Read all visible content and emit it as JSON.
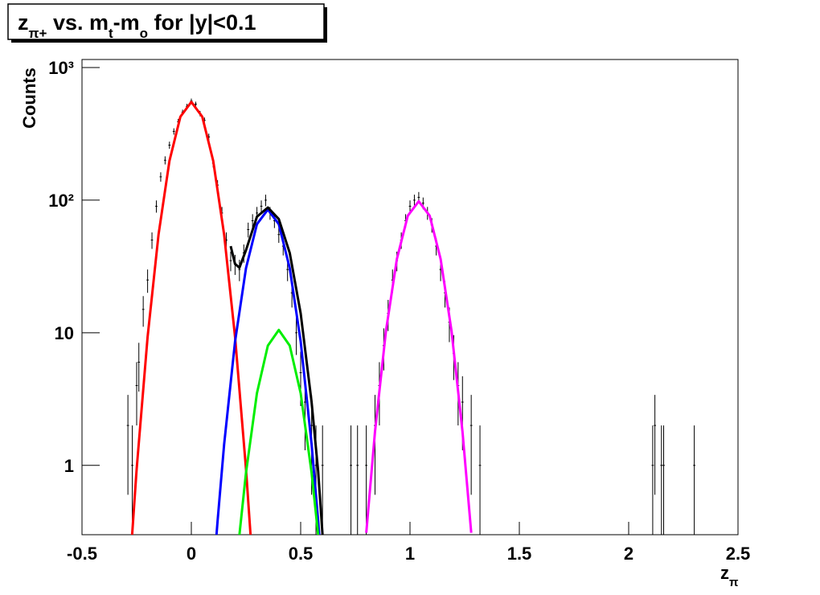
{
  "chart_data": {
    "type": "line",
    "title": [
      "z",
      "π+",
      " vs. m",
      "t",
      "-m",
      "o",
      " for |y|<0.1"
    ],
    "xlabel": [
      "z",
      "π"
    ],
    "ylabel": "Counts",
    "xlim": [
      -0.5,
      2.5
    ],
    "ylim": [
      0.3,
      1150
    ],
    "log_y": true,
    "xticks": [
      -0.5,
      0,
      0.5,
      1,
      1.5,
      2,
      2.5
    ],
    "yticks": [
      1,
      10,
      {
        "value": 100,
        "label": "10²"
      },
      {
        "value": 1000,
        "label": "10³"
      }
    ],
    "series": [
      {
        "color": "#ff0000",
        "x": [
          -0.28,
          -0.25,
          -0.2,
          -0.15,
          -0.1,
          -0.05,
          0,
          0.05,
          0.1,
          0.15,
          0.2,
          0.25,
          0.28
        ],
        "values": [
          0.18,
          0.94,
          9.3,
          55,
          198,
          426,
          550,
          426,
          198,
          55,
          9.3,
          0.94,
          0.18
        ]
      },
      {
        "color": "#0000ff",
        "x": [
          0.1,
          0.12,
          0.15,
          0.2,
          0.25,
          0.3,
          0.35,
          0.4,
          0.45,
          0.5,
          0.55,
          0.58,
          0.6
        ],
        "values": [
          0.145,
          0.38,
          1.44,
          8.6,
          30.7,
          65.9,
          85,
          65.9,
          30.7,
          8.6,
          1.44,
          0.38,
          0.145
        ]
      },
      {
        "color": "#00ee00",
        "x": [
          0.2,
          0.22,
          0.25,
          0.3,
          0.35,
          0.4,
          0.45,
          0.5,
          0.55,
          0.58,
          0.6
        ],
        "values": [
          0.129,
          0.3,
          0.88,
          3.5,
          8.0,
          10.5,
          8.0,
          3.5,
          0.88,
          0.3,
          0.129
        ]
      },
      {
        "color": "#000000",
        "x": [
          0.18,
          0.2,
          0.22,
          0.25,
          0.3,
          0.35,
          0.4,
          0.45,
          0.5,
          0.55,
          0.58,
          0.6
        ],
        "values": [
          45,
          33,
          31,
          42,
          75,
          88,
          72,
          40,
          14,
          3,
          0.9,
          0.3
        ]
      },
      {
        "color": "#ff00ff",
        "x": [
          0.8,
          0.84,
          0.89,
          0.94,
          0.99,
          1.04,
          1.09,
          1.14,
          1.19,
          1.24,
          1.28
        ],
        "values": [
          0.31,
          1.8,
          10.3,
          36,
          76.3,
          98,
          76.3,
          36,
          10.3,
          1.8,
          0.31
        ]
      }
    ],
    "points": {
      "x": [
        -0.29,
        -0.27,
        -0.25,
        -0.24,
        -0.22,
        -0.2,
        -0.18,
        -0.16,
        -0.14,
        -0.12,
        -0.1,
        -0.08,
        -0.06,
        -0.04,
        -0.02,
        0,
        0.02,
        0.04,
        0.06,
        0.08,
        0.1,
        0.12,
        0.14,
        0.16,
        0.18,
        0.2,
        0.22,
        0.24,
        0.26,
        0.28,
        0.3,
        0.32,
        0.34,
        0.36,
        0.38,
        0.4,
        0.42,
        0.44,
        0.46,
        0.48,
        0.5,
        0.52,
        0.55,
        0.57,
        0.6,
        0.73,
        0.76,
        0.8,
        0.84,
        0.86,
        0.88,
        0.9,
        0.92,
        0.94,
        0.96,
        0.98,
        1.0,
        1.02,
        1.04,
        1.06,
        1.08,
        1.1,
        1.12,
        1.14,
        1.16,
        1.18,
        1.2,
        1.22,
        1.24,
        1.28,
        1.32,
        2.11,
        2.12,
        2.15,
        2.16,
        2.3
      ],
      "values": [
        2,
        1,
        4,
        6,
        15,
        25,
        50,
        90,
        150,
        200,
        260,
        330,
        390,
        460,
        510,
        560,
        530,
        450,
        400,
        300,
        190,
        130,
        80,
        50,
        35,
        33,
        30,
        40,
        60,
        70,
        80,
        90,
        100,
        80,
        70,
        55,
        45,
        30,
        20,
        10,
        5,
        3,
        2,
        1,
        1,
        1,
        1,
        1,
        2,
        4,
        8,
        14,
        25,
        35,
        50,
        70,
        90,
        100,
        105,
        95,
        80,
        65,
        45,
        30,
        20,
        12,
        7,
        4,
        3,
        2,
        1,
        1,
        2,
        1,
        1,
        1
      ],
      "errors": [
        1.4,
        1,
        2,
        2.4,
        3.9,
        5,
        7.1,
        9.5,
        12.2,
        14.1,
        16.1,
        18.2,
        19.7,
        21.4,
        22.6,
        23.7,
        23,
        21.2,
        20,
        17.3,
        13.8,
        11.4,
        8.9,
        7.1,
        5.9,
        5.7,
        5.5,
        6.3,
        7.7,
        8.4,
        8.9,
        9.5,
        10,
        8.9,
        8.4,
        7.4,
        6.7,
        5.5,
        4.5,
        3.2,
        2.2,
        1.7,
        1.4,
        1,
        1,
        1,
        1,
        1,
        1.4,
        2,
        2.8,
        3.7,
        5,
        5.9,
        7.1,
        8.4,
        9.5,
        10,
        10.2,
        9.7,
        8.9,
        8.1,
        6.7,
        5.5,
        4.5,
        3.5,
        2.6,
        2,
        1.7,
        1.4,
        1,
        1,
        1.4,
        1,
        1,
        1
      ]
    }
  }
}
